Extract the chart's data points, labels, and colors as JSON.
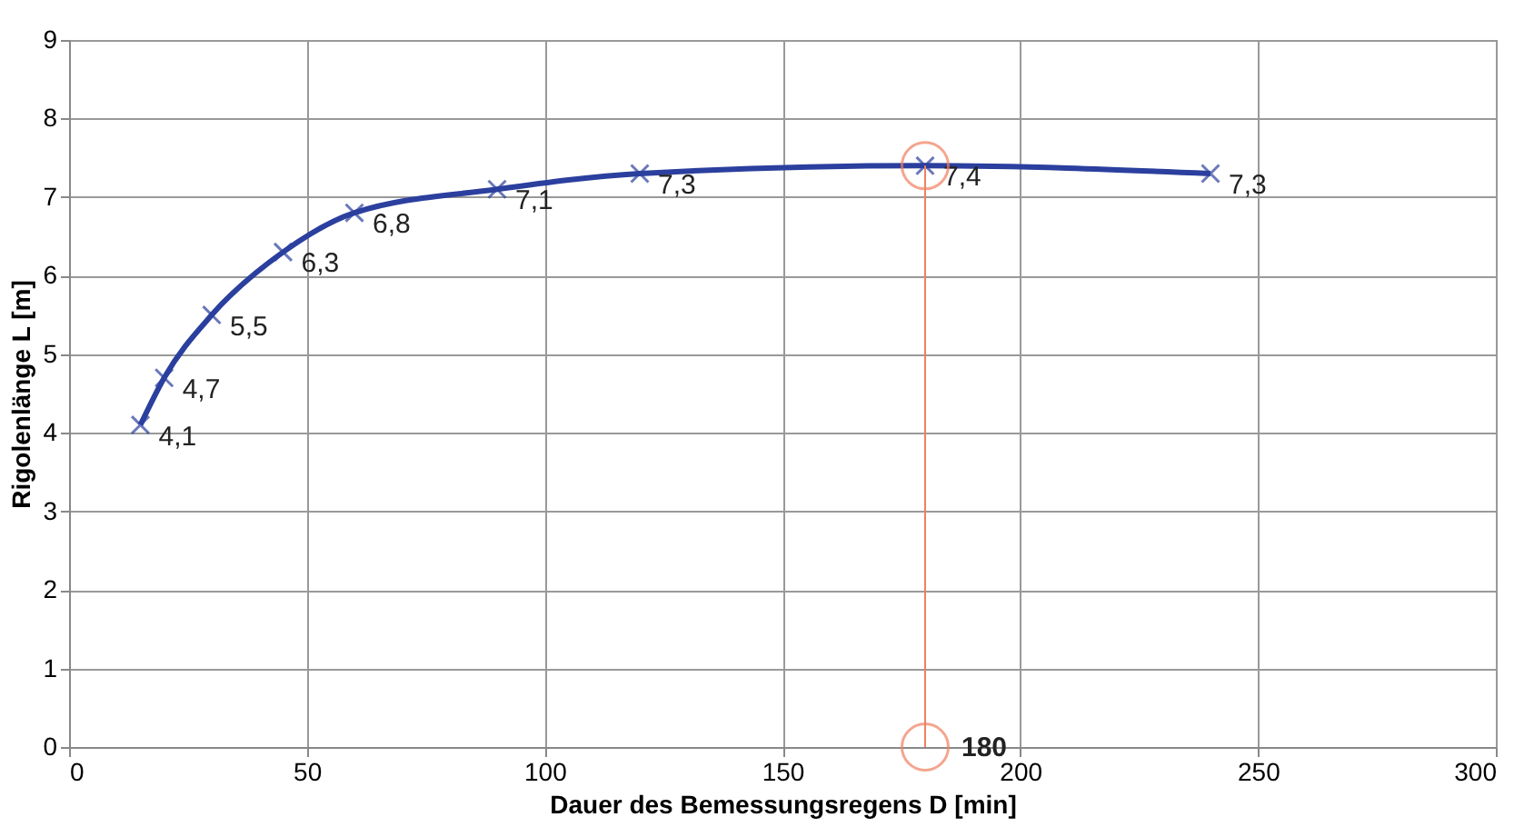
{
  "chart_data": {
    "type": "line",
    "xlabel": "Dauer des Bemessungsregens  D [min]",
    "ylabel": "Rigolenlänge L [m]",
    "x": [
      15,
      20,
      30,
      45,
      60,
      90,
      120,
      180,
      240
    ],
    "series": [
      {
        "color": "#2b3f9e",
        "values": [
          4.1,
          4.7,
          5.5,
          6.3,
          6.8,
          7.1,
          7.3,
          7.4,
          7.3
        ]
      }
    ],
    "value_labels": [
      "4,1",
      "4,7",
      "5,5",
      "6,3",
      "6,8",
      "7,1",
      "7,3",
      "7,4",
      "7,3"
    ],
    "marker": "cross",
    "line_style": "solid",
    "xlim": [
      0,
      300
    ],
    "xticks": [
      0,
      50,
      100,
      150,
      200,
      250,
      300
    ],
    "ylim": [
      0,
      9
    ],
    "yticks": [
      0,
      1,
      2,
      3,
      4,
      5,
      6,
      7,
      8,
      9
    ],
    "grid": true,
    "ref_lines": [
      {
        "axis": "x",
        "value": 180,
        "color": "#f08060"
      }
    ],
    "annotations": [
      {
        "text": "180",
        "x": 180,
        "y": 0
      }
    ]
  }
}
